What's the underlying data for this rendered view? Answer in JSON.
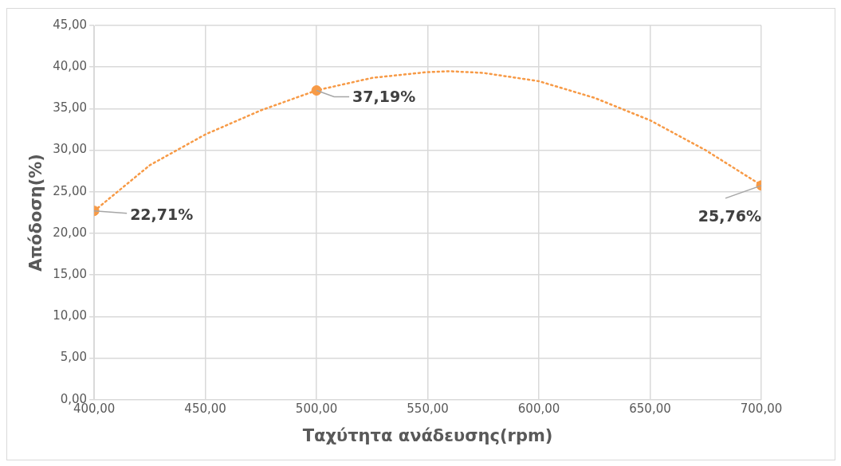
{
  "chart_data": {
    "type": "scatter",
    "xlabel": "Ταχύτητα ανάδευσης(rpm)",
    "ylabel": "Απόδοση(%)",
    "series": [
      {
        "type": "scatter",
        "color": "#f79a46",
        "marker": "circle",
        "x": [
          400,
          500,
          700
        ],
        "values": [
          22.71,
          37.19,
          25.76
        ],
        "value_labels": [
          "22,71%",
          "37,19%",
          "25,76%"
        ]
      },
      {
        "type": "line",
        "color": "#f79a46",
        "marker": "none",
        "line_style": "dotted",
        "x": [
          400,
          425,
          450,
          475,
          500,
          525,
          550,
          560,
          575,
          600,
          625,
          650,
          675,
          700
        ],
        "values": [
          22.7,
          28.2,
          31.9,
          34.8,
          37.2,
          38.7,
          39.4,
          39.5,
          39.3,
          38.3,
          36.3,
          33.6,
          30.0,
          25.8
        ]
      }
    ],
    "xlim": [
      400,
      700
    ],
    "xticks": [
      {
        "value": 400,
        "label": "400,00"
      },
      {
        "value": 450,
        "label": "450,00"
      },
      {
        "value": 500,
        "label": "500,00"
      },
      {
        "value": 550,
        "label": "550,00"
      },
      {
        "value": 600,
        "label": "600,00"
      },
      {
        "value": 650,
        "label": "650,00"
      },
      {
        "value": 700,
        "label": "700,00"
      }
    ],
    "ylim": [
      0,
      45
    ],
    "yticks": [
      {
        "value": 0,
        "label": "0,00"
      },
      {
        "value": 5,
        "label": "5,00"
      },
      {
        "value": 10,
        "label": "10,00"
      },
      {
        "value": 15,
        "label": "15,00"
      },
      {
        "value": 20,
        "label": "20,00"
      },
      {
        "value": 25,
        "label": "25,00"
      },
      {
        "value": 30,
        "label": "30,00"
      },
      {
        "value": 35,
        "label": "35,00"
      },
      {
        "value": 40,
        "label": "40,00"
      },
      {
        "value": 45,
        "label": "45,00"
      }
    ],
    "grid": true,
    "legend": false
  }
}
